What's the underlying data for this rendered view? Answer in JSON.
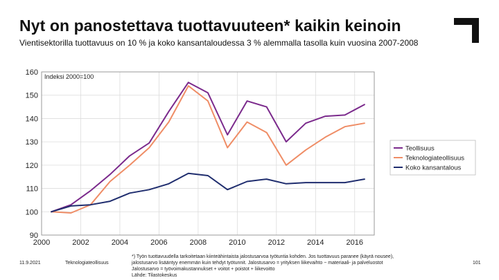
{
  "slide": {
    "title": "Nyt on panostettava tuottavuuteen* kaikin keinoin",
    "subtitle": "Vientisektorilla tuottavuus on 10 % ja koko kansantaloudessa 3 % alemmalla tasolla kuin vuosina 2007-2008",
    "date": "11.9.2021",
    "organization": "Teknologiateollisuus",
    "page_number": "101",
    "footnote": [
      "*) Työn tuottavuudella tarkoitetaan kiinteähintaista jalostusarvoa työtuntia kohden. Jos tuottavuus paranee (käyrä nousee),",
      "jalostusarvo lisääntyy enemmän kuin tehdyt työtunnit. Jalostusarvo = yrityksen liikevaihto − materiaali- ja palveluostot",
      "Jalostusarvo = työvoimakustannukset + voitot + poistot + liikevoitto",
      "Lähde: Tilastokeskus"
    ]
  },
  "chart_data": {
    "type": "line",
    "title": "",
    "annotation": "Indeksi 2000=100",
    "xlabel": "",
    "ylabel": "",
    "xlim": [
      2000,
      2017
    ],
    "ylim": [
      90,
      160
    ],
    "x_ticks": [
      2000,
      2002,
      2004,
      2006,
      2008,
      2010,
      2012,
      2014,
      2016
    ],
    "y_ticks": [
      90,
      100,
      110,
      120,
      130,
      140,
      150,
      160
    ],
    "grid": true,
    "legend_position": "right",
    "x": [
      2000.5,
      2001.5,
      2002.5,
      2003.5,
      2004.5,
      2005.5,
      2006.5,
      2007.5,
      2008.5,
      2009.5,
      2010.5,
      2011.5,
      2012.5,
      2013.5,
      2014.5,
      2015.5,
      2016.5
    ],
    "series": [
      {
        "name": "Teollisuus",
        "color": "#7b2a8c",
        "values": [
          100,
          103,
          109,
          116,
          124,
          129.5,
          143,
          155.5,
          151,
          133,
          147.5,
          145,
          130,
          138,
          141,
          141.5,
          146
        ]
      },
      {
        "name": "Teknologiateollisuus",
        "color": "#ef8d66",
        "values": [
          100,
          99.5,
          103,
          113,
          120,
          127.5,
          138.5,
          154,
          147.5,
          127.5,
          138.5,
          134,
          120,
          126.5,
          132,
          136.5,
          138
        ]
      },
      {
        "name": "Koko kansantalous",
        "color": "#1f2d6e",
        "values": [
          100,
          102.5,
          103,
          104.5,
          108,
          109.5,
          112,
          116.5,
          115.5,
          109.5,
          113,
          114,
          112,
          112.5,
          112.5,
          112.5,
          114
        ]
      }
    ]
  }
}
